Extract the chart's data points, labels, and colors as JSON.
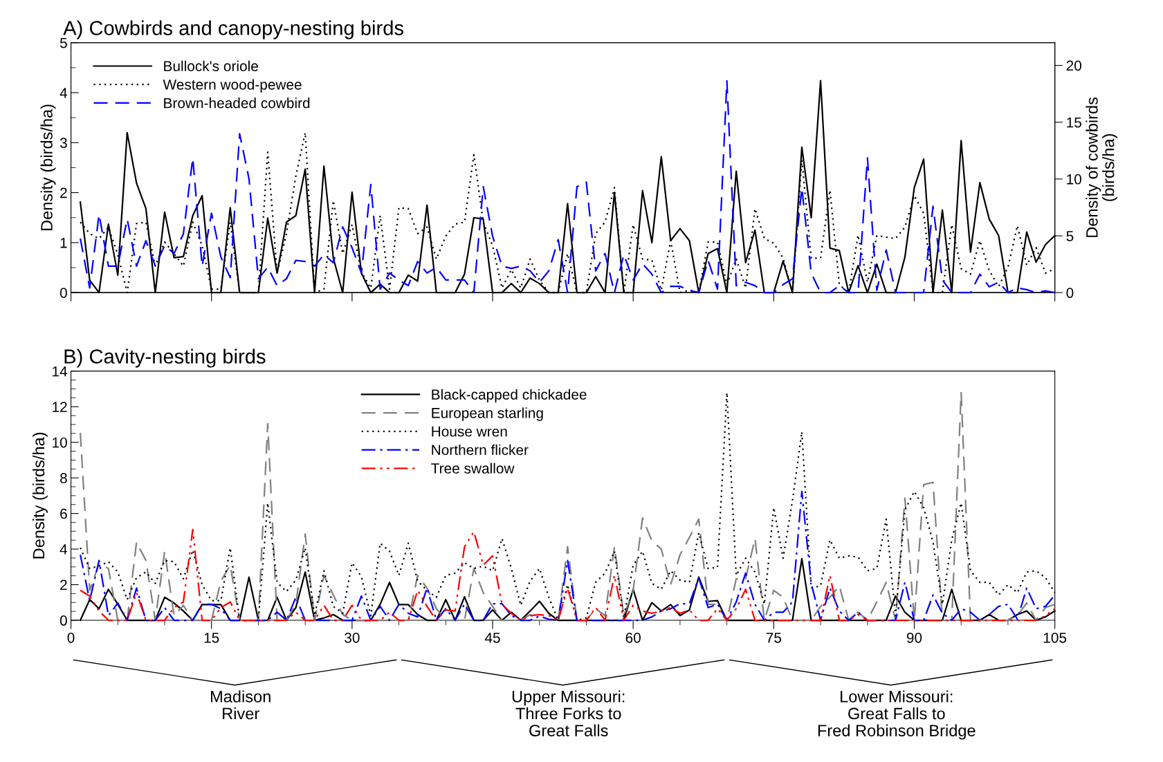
{
  "chart_data": [
    {
      "type": "line",
      "title": "A) Cowbirds and canopy-nesting birds",
      "ylabel": "Density (birds/ha)",
      "y2label": "Density of cowbirds\n(birds/ha)",
      "x": [
        1,
        2,
        3,
        4,
        5,
        6,
        7,
        8,
        9,
        10,
        11,
        12,
        13,
        14,
        15,
        16,
        17,
        18,
        19,
        20,
        21,
        22,
        23,
        24,
        25,
        26,
        27,
        28,
        29,
        30,
        31,
        32,
        33,
        34,
        35,
        36,
        37,
        38,
        39,
        40,
        41,
        42,
        43,
        44,
        45,
        46,
        47,
        48,
        49,
        50,
        51,
        52,
        53,
        54,
        55,
        56,
        57,
        58,
        59,
        60,
        61,
        62,
        63,
        64,
        65,
        66,
        67,
        68,
        69,
        70,
        71,
        72,
        73,
        74,
        75,
        76,
        77,
        78,
        79,
        80,
        81,
        82,
        83,
        84,
        85,
        86,
        87,
        88,
        89,
        90,
        91,
        92,
        93,
        94,
        95,
        96,
        97,
        98,
        99,
        100,
        101,
        102,
        103,
        104,
        105
      ],
      "xlim": [
        0,
        105
      ],
      "xticks": [
        0,
        15,
        30,
        45,
        60,
        75,
        90,
        105
      ],
      "ylim": [
        0,
        5
      ],
      "yticks": [
        0,
        1,
        2,
        3,
        4,
        5
      ],
      "y2lim": [
        0,
        22
      ],
      "y2ticks": [
        0,
        5,
        10,
        15,
        20
      ],
      "tick_labels": "y",
      "grid": false,
      "legend": "top left",
      "marker": "none",
      "series": [
        {
          "name": "Bullock's oriole",
          "color": "#000000",
          "line_style": "solid",
          "values": [
            1.81,
            0.25,
            0,
            1.37,
            0.35,
            3.2,
            2.19,
            1.68,
            0,
            1.61,
            0.7,
            0.72,
            1.54,
            1.94,
            0,
            0,
            1.7,
            0,
            0,
            0,
            1.49,
            0.39,
            1.41,
            1.54,
            2.47,
            0,
            2.53,
            0.69,
            0,
            2.01,
            0.39,
            0,
            0.17,
            0,
            0,
            0.35,
            0.23,
            1.75,
            0,
            0,
            0,
            0.37,
            1.5,
            1.47,
            0,
            0,
            0.18,
            0,
            0.29,
            0.18,
            0,
            0,
            1.78,
            0,
            0,
            0.32,
            0,
            2.0,
            0,
            0,
            2.04,
            1.0,
            2.72,
            1.04,
            1.28,
            1.04,
            0,
            0.78,
            0.88,
            0,
            2.43,
            0.6,
            1.25,
            0,
            0,
            0.63,
            0,
            2.91,
            1.5,
            4.24,
            0.89,
            0.84,
            0,
            0.54,
            0,
            0.57,
            0,
            0,
            0.71,
            2.1,
            2.67,
            0,
            1.65,
            0,
            3.04,
            0.81,
            2.2,
            1.47,
            1.14,
            0,
            0,
            1.21,
            0.61,
            0.96,
            1.14
          ]
        },
        {
          "name": "Western wood-pewee",
          "color": "#000000",
          "line_style": "dotted",
          "values": [
            1.41,
            1.18,
            1.08,
            1.31,
            0.76,
            0,
            1.38,
            1.41,
            0.53,
            1.01,
            0.78,
            0.53,
            1.41,
            0.94,
            0.07,
            0.07,
            1.41,
            0,
            0,
            0,
            2.81,
            0.39,
            1.18,
            2.33,
            3.2,
            0,
            0.07,
            1.84,
            0.78,
            1.36,
            0.41,
            0.09,
            1.54,
            0.07,
            1.7,
            1.68,
            1.18,
            1.31,
            0.67,
            1.13,
            1.37,
            1.41,
            2.76,
            1.41,
            0.94,
            0.09,
            0.46,
            0.09,
            0.67,
            0.25,
            0,
            0,
            0.78,
            0,
            0,
            1.18,
            1.41,
            2.1,
            0,
            1.36,
            0.67,
            0.65,
            0.05,
            1.04,
            0,
            0.05,
            0,
            1.01,
            1.01,
            0.16,
            0.67,
            0.09,
            1.68,
            1.08,
            0.99,
            0.69,
            0,
            2.65,
            0.69,
            0.69,
            2.05,
            0.16,
            0,
            1.15,
            0.21,
            1.14,
            1.11,
            1.08,
            1.31,
            1.94,
            1.59,
            0,
            0,
            1.36,
            0.48,
            0.37,
            1.04,
            0.44,
            0.12,
            0.51,
            1.34,
            0.55,
            0.9,
            0.39,
            0.48
          ]
        },
        {
          "name": "Brown-headed cowbird",
          "color": "#0000ff",
          "line_style": "dashed",
          "axis": "y2",
          "values": [
            4.76,
            0.41,
            6.89,
            2.33,
            2.33,
            6.48,
            2.33,
            4.56,
            2.33,
            4.15,
            3.44,
            5.17,
            11.85,
            2.33,
            6.99,
            3.14,
            1.32,
            13.98,
            10.03,
            1.22,
            2.23,
            0.61,
            1.22,
            2.84,
            2.74,
            2.33,
            3.34,
            2.63,
            5.78,
            3.95,
            1.72,
            9.52,
            0.3,
            1.72,
            1.11,
            0.61,
            2.74,
            1.72,
            2.23,
            1.11,
            1.11,
            1.11,
            0,
            9.32,
            4.96,
            2.33,
            2.13,
            2.33,
            1.92,
            0.91,
            1.92,
            4.66,
            0,
            9.32,
            9.73,
            1.92,
            3.44,
            0,
            3.34,
            1.11,
            2.53,
            1.62,
            0,
            0.55,
            0.55,
            0.2,
            0,
            2.84,
            0.3,
            18.64,
            0.61,
            0.91,
            0.61,
            0,
            0,
            0.71,
            1.22,
            9.22,
            1.72,
            0,
            0,
            0.61,
            0,
            0,
            11.85,
            0.2,
            3.75,
            0,
            0,
            0,
            0,
            7.6,
            1.11,
            0,
            0,
            0,
            1.62,
            0.51,
            0.91,
            0,
            0.41,
            0.26,
            0,
            0.16,
            0
          ]
        }
      ]
    },
    {
      "type": "line",
      "title": "B) Cavity-nesting birds",
      "ylabel": "Density (birds/ha)",
      "annotations": [
        "Madison\nRiver",
        "Upper Missouri:\nThree Forks to\nGreat Falls",
        "Lower Missouri:\nGreat Falls to\nFred Robinson Bridge"
      ],
      "x": [
        1,
        2,
        3,
        4,
        5,
        6,
        7,
        8,
        9,
        10,
        11,
        12,
        13,
        14,
        15,
        16,
        17,
        18,
        19,
        20,
        21,
        22,
        23,
        24,
        25,
        26,
        27,
        28,
        29,
        30,
        31,
        32,
        33,
        34,
        35,
        36,
        37,
        38,
        39,
        40,
        41,
        42,
        43,
        44,
        45,
        46,
        47,
        48,
        49,
        50,
        51,
        52,
        53,
        54,
        55,
        56,
        57,
        58,
        59,
        60,
        61,
        62,
        63,
        64,
        65,
        66,
        67,
        68,
        69,
        70,
        71,
        72,
        73,
        74,
        75,
        76,
        77,
        78,
        79,
        80,
        81,
        82,
        83,
        84,
        85,
        86,
        87,
        88,
        89,
        90,
        91,
        92,
        93,
        94,
        95,
        96,
        97,
        98,
        99,
        100,
        101,
        102,
        103,
        104,
        105
      ],
      "xlim": [
        0,
        105
      ],
      "xticks": [
        0,
        15,
        30,
        45,
        60,
        75,
        90,
        105
      ],
      "ylim": [
        0,
        14
      ],
      "yticks": [
        0,
        2,
        4,
        6,
        8,
        10,
        12,
        14
      ],
      "grid": false,
      "legend": "top",
      "marker": "none",
      "series": [
        {
          "name": "Black-capped chickadee",
          "color": "#000000",
          "line_style": "solid",
          "values": [
            0,
            1.16,
            0.65,
            1.74,
            0.9,
            0,
            0,
            0,
            0,
            1.29,
            0.97,
            0.52,
            0,
            0.88,
            0.88,
            0.88,
            0,
            0,
            2.42,
            0,
            0,
            1.29,
            0,
            0.71,
            2.71,
            0,
            0.13,
            0.32,
            0,
            0,
            0,
            0,
            0.9,
            2.13,
            0.88,
            0.88,
            0.32,
            0,
            0,
            1.16,
            0,
            1.32,
            0,
            0,
            0.58,
            0,
            0.45,
            0,
            0.52,
            1.07,
            0.39,
            0,
            0,
            0,
            0,
            0,
            0,
            0,
            0,
            1.74,
            0,
            0.99,
            0.52,
            0.88,
            0.26,
            0.58,
            2.43,
            1.06,
            1.1,
            0,
            0,
            0,
            0,
            0,
            0,
            0,
            0,
            3.46,
            0,
            0,
            0,
            0,
            0,
            0,
            0,
            0,
            0,
            1.36,
            0.45,
            0,
            0,
            0,
            0,
            1.74,
            0,
            0,
            0,
            0.32,
            0,
            0,
            0.32,
            0.52,
            0,
            0.19,
            0.52
          ]
        },
        {
          "name": "European starling",
          "color": "#808080",
          "line_style": "dashed",
          "values": [
            10.53,
            1.68,
            3.17,
            2.91,
            0,
            0,
            4.39,
            3.36,
            0,
            3.88,
            0.26,
            0.84,
            0,
            0,
            0,
            2.2,
            3.1,
            0,
            0,
            0,
            11.05,
            0,
            0,
            0.9,
            4.84,
            0,
            2.52,
            1.42,
            0.32,
            0,
            0,
            0,
            0,
            0,
            0,
            0,
            2.52,
            1.81,
            0.65,
            0,
            0,
            0,
            2.91,
            1.55,
            0.78,
            0,
            0,
            0,
            0.32,
            0,
            0,
            0,
            4.13,
            0,
            0,
            0.65,
            0.26,
            4.13,
            0.26,
            1.68,
            5.75,
            4.46,
            4.0,
            2.0,
            3.68,
            4.65,
            5.68,
            0.9,
            0.9,
            0,
            2.33,
            2.33,
            4.59,
            0,
            1.68,
            1.29,
            0,
            0,
            0,
            0.78,
            1.29,
            1.94,
            0,
            0.45,
            0,
            1.03,
            2.13,
            0,
            6.85,
            0,
            7.62,
            7.75,
            0,
            0,
            12.79,
            0,
            0,
            0,
            0,
            0,
            0.26,
            0.97,
            0,
            0.71,
            0.9
          ]
        },
        {
          "name": "House wren",
          "color": "#000000",
          "line_style": "dotted",
          "values": [
            4.07,
            2.91,
            3.04,
            3.29,
            2.71,
            1.16,
            2.39,
            2.71,
            2.07,
            3.36,
            3.29,
            2.33,
            3.94,
            2.0,
            1.1,
            1.1,
            4.07,
            0,
            0,
            0,
            6.59,
            2.13,
            1.61,
            2.26,
            4.07,
            0.26,
            2.78,
            0.78,
            0.39,
            3.23,
            2.45,
            0.26,
            4.33,
            3.88,
            2.52,
            4.33,
            2.2,
            1.68,
            1.29,
            2.52,
            2.65,
            3.23,
            2.91,
            3.04,
            2.78,
            4.59,
            2.91,
            0.84,
            2.2,
            2.91,
            1.29,
            0,
            2.0,
            0,
            0.13,
            2.13,
            2.65,
            3.88,
            0.13,
            3.1,
            3.88,
            2.07,
            1.74,
            2.78,
            2.26,
            2.13,
            4.91,
            2.91,
            2.97,
            12.79,
            2.52,
            3.49,
            2.71,
            0.9,
            6.33,
            3.49,
            6.72,
            10.59,
            1.81,
            1.94,
            4.52,
            3.49,
            3.62,
            3.55,
            2.78,
            2.91,
            5.68,
            0.26,
            6.2,
            7.24,
            6.33,
            4.39,
            0.9,
            4.52,
            6.59,
            2.78,
            2.13,
            2.13,
            1.42,
            2.0,
            1.55,
            2.71,
            2.78,
            2.39,
            1.55
          ]
        },
        {
          "name": "Northern flicker",
          "color": "#0000ff",
          "line_style": "dashdot",
          "values": [
            3.68,
            1.1,
            3.36,
            0.26,
            0.97,
            0,
            1.81,
            0,
            0,
            0.71,
            0,
            0,
            0,
            0.9,
            0.9,
            0.65,
            0,
            0,
            0,
            0,
            0,
            0.45,
            0,
            1.29,
            0,
            0,
            0,
            0,
            0,
            0,
            1.36,
            0,
            0.78,
            0,
            0.9,
            0.39,
            0.19,
            1.81,
            0,
            0.65,
            0,
            0.9,
            0,
            0,
            0.93,
            0.93,
            0.26,
            0,
            0,
            0.23,
            0.06,
            0,
            3.36,
            0,
            0,
            0,
            0,
            0,
            0,
            0,
            0,
            0.19,
            0.52,
            0.65,
            0.93,
            0.93,
            2.39,
            0.71,
            0.9,
            0,
            1.03,
            2.65,
            0.9,
            0,
            0.45,
            0.45,
            1.03,
            7.24,
            2.07,
            0,
            1.81,
            0.52,
            0,
            0.45,
            0,
            0,
            0,
            0,
            2.13,
            0,
            0,
            1.42,
            0.39,
            0,
            0.65,
            0.45,
            0,
            0.32,
            0.78,
            0.9,
            0.06,
            1.81,
            0.65,
            0.78,
            1.42
          ]
        },
        {
          "name": "Tree swallow",
          "color": "#ff0000",
          "line_style": "dashdotdot",
          "values": [
            1.68,
            1.36,
            0.52,
            0,
            0,
            0,
            1.55,
            0,
            0,
            0,
            0.71,
            1.03,
            5.1,
            0,
            0,
            0.71,
            1.03,
            0,
            0,
            0,
            0,
            0,
            0,
            0.45,
            0,
            0,
            0.84,
            0,
            0,
            0.84,
            0,
            0,
            0,
            0.45,
            0,
            0,
            1.68,
            0.78,
            0,
            0.58,
            0.52,
            4.13,
            4.97,
            3.1,
            3.62,
            0.9,
            0.39,
            0,
            0.26,
            0.32,
            0.26,
            0,
            1.81,
            0,
            0,
            0.71,
            0,
            2.52,
            0,
            0.84,
            0.52,
            0.39,
            0.52,
            0.71,
            0.39,
            0.58,
            0,
            0,
            0.65,
            0,
            0.65,
            1.74,
            0,
            0,
            0,
            0,
            0,
            0,
            0,
            0,
            2.52,
            0,
            0,
            0.32,
            0,
            0,
            0,
            0,
            0,
            0,
            0,
            0,
            0,
            0,
            0,
            0,
            0,
            0,
            0,
            0,
            0,
            0,
            0,
            0.26,
            0.65
          ]
        }
      ]
    }
  ]
}
